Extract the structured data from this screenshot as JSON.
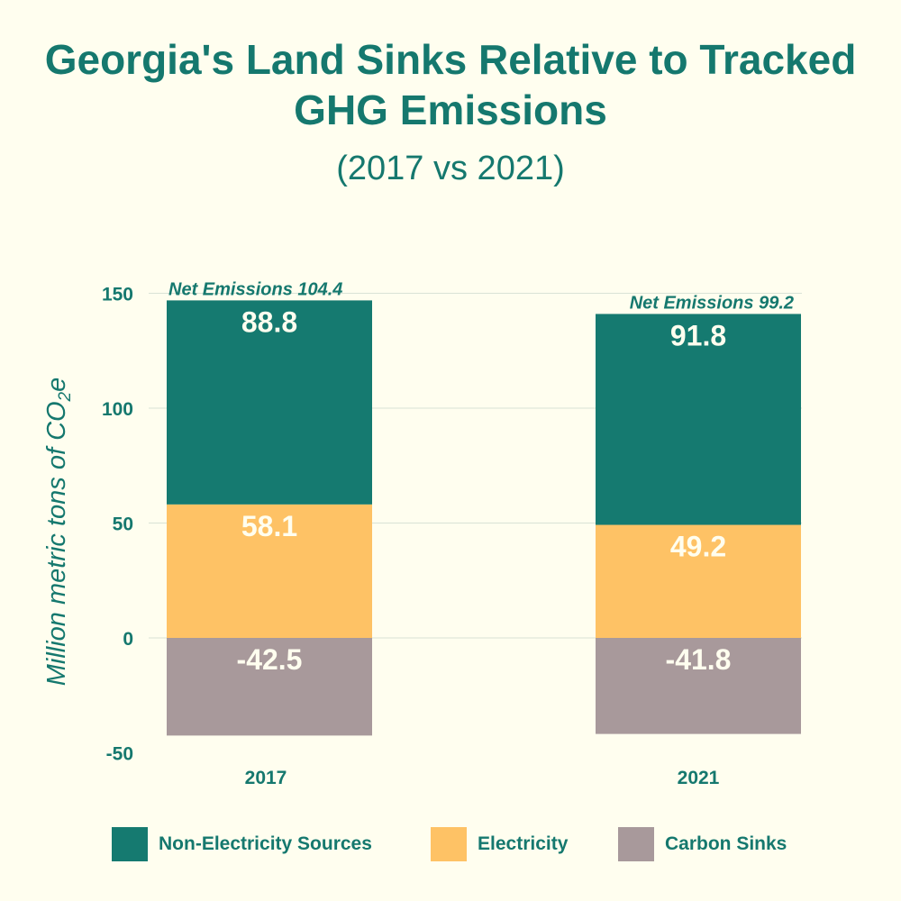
{
  "chart_data": {
    "type": "bar",
    "stacked": true,
    "title": "Georgia's Land Sinks Relative to Tracked GHG Emissions",
    "subtitle": "(2017 vs 2021)",
    "ylabel_main": "Million metric tons of CO",
    "ylabel_sub": "2",
    "ylabel_end": "e",
    "categories": [
      "2017",
      "2021"
    ],
    "series": [
      {
        "name": "Non-Electricity Sources",
        "values": [
          88.8,
          91.8
        ],
        "color": "#157a70"
      },
      {
        "name": "Electricity",
        "values": [
          58.1,
          49.2
        ],
        "color": "#fec265"
      },
      {
        "name": "Carbon Sinks",
        "values": [
          -42.5,
          -41.8
        ],
        "color": "#a8999b"
      }
    ],
    "annotations": [
      "Net Emissions 104.4",
      "Net Emissions 99.2"
    ],
    "yticks": [
      "150",
      "100",
      "50",
      "0",
      "-50"
    ],
    "ylim": [
      -50,
      150
    ],
    "grid": true,
    "legend_position": "bottom"
  }
}
